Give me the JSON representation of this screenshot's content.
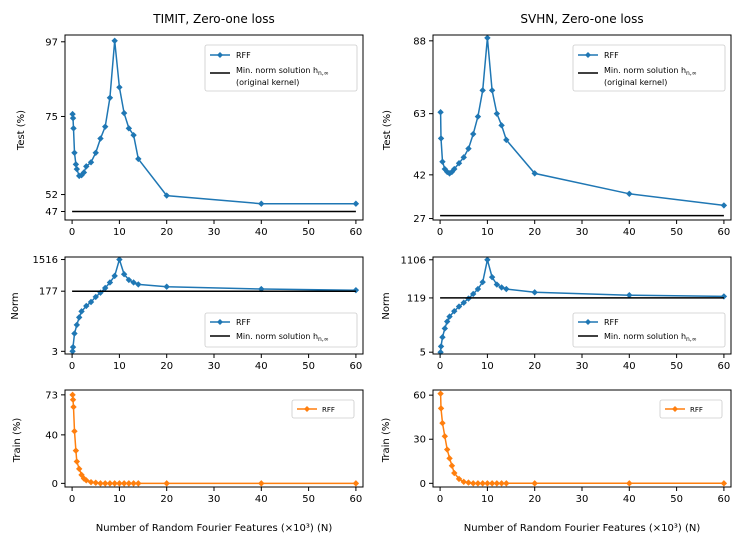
{
  "figure": {
    "xlabel": "Number of Random Fourier Features (×10³) (N)",
    "colors": {
      "blue": "#1f77b4",
      "orange": "#ff7f0e",
      "black": "#000000"
    }
  },
  "legend": {
    "rff": "RFF",
    "min_norm_test_line1": "Min. norm solution h",
    "min_norm_test_sub": "n,∞",
    "min_norm_test_line2": "(original kernel)",
    "min_norm_norm": "Min. norm solution h",
    "min_norm_norm_sub": "n,∞"
  },
  "chart_data": [
    {
      "id": "timit-test",
      "title": "TIMIT, Zero-one loss",
      "type": "line",
      "ylabel": "Test (%)",
      "xlim": [
        -1.5,
        61.5
      ],
      "ylim": [
        44.5,
        99
      ],
      "xticks": [
        0,
        10,
        20,
        30,
        40,
        50,
        60
      ],
      "yticks": [
        47,
        52,
        75,
        97
      ],
      "series": [
        {
          "name": "RFF",
          "color": "#1f77b4",
          "marker": "diamond",
          "x": [
            0.1,
            0.2,
            0.3,
            0.5,
            0.8,
            1,
            1.5,
            2,
            2.5,
            3,
            4,
            5,
            6,
            7,
            8,
            9,
            10,
            11,
            12,
            13,
            14,
            20,
            40,
            60
          ],
          "y": [
            75.7,
            74.5,
            71.5,
            64.3,
            60.9,
            59.5,
            57.5,
            57.7,
            58.5,
            60.3,
            61.5,
            64.3,
            68.5,
            72,
            80.5,
            97.3,
            83.6,
            76,
            71.5,
            69.5,
            62.5,
            51.7,
            49.3,
            49.3
          ]
        },
        {
          "name": "Min. norm solution (original kernel)",
          "color": "#000000",
          "marker": "none",
          "x": [
            0,
            60
          ],
          "y": [
            47,
            47
          ]
        }
      ]
    },
    {
      "id": "svhn-test",
      "title": "SVHN, Zero-one loss",
      "type": "line",
      "ylabel": "Test (%)",
      "xlim": [
        -1.5,
        61.5
      ],
      "ylim": [
        26.5,
        90
      ],
      "xticks": [
        0,
        10,
        20,
        30,
        40,
        50,
        60
      ],
      "yticks": [
        27,
        42,
        63,
        88
      ],
      "series": [
        {
          "name": "RFF",
          "color": "#1f77b4",
          "marker": "diamond",
          "x": [
            0.1,
            0.2,
            0.5,
            1,
            1.5,
            2,
            2.5,
            3,
            4,
            5,
            6,
            7,
            8,
            9,
            10,
            11,
            12,
            13,
            14,
            20,
            40,
            60
          ],
          "y": [
            63.5,
            54.5,
            46.5,
            44,
            43,
            42.5,
            43,
            44,
            46,
            48,
            51,
            56,
            62,
            71,
            89,
            71,
            63,
            59,
            54,
            42.5,
            35.5,
            31.5
          ]
        },
        {
          "name": "Min. norm solution (original kernel)",
          "color": "#000000",
          "marker": "none",
          "x": [
            0,
            60
          ],
          "y": [
            28,
            28
          ]
        }
      ]
    },
    {
      "id": "timit-norm",
      "type": "line",
      "ylabel": "Norm",
      "xlim": [
        -1.5,
        61.5
      ],
      "ylim": [
        2.5,
        1800
      ],
      "yscale": "log",
      "xticks": [
        0,
        10,
        20,
        30,
        40,
        50,
        60
      ],
      "yticks": [
        3,
        177,
        1516
      ],
      "series": [
        {
          "name": "RFF",
          "color": "#1f77b4",
          "marker": "diamond",
          "x": [
            0.1,
            0.2,
            0.5,
            1,
            1.5,
            2,
            3,
            4,
            5,
            6,
            7,
            8,
            9,
            10,
            11,
            12,
            13,
            14,
            20,
            40,
            60
          ],
          "y": [
            3,
            4,
            10,
            18,
            30,
            45,
            65,
            85,
            120,
            160,
            220,
            320,
            500,
            1516,
            560,
            380,
            320,
            280,
            240,
            205,
            190
          ]
        },
        {
          "name": "Min. norm solution",
          "color": "#000000",
          "marker": "none",
          "x": [
            0,
            60
          ],
          "y": [
            177,
            177
          ]
        }
      ]
    },
    {
      "id": "svhn-norm",
      "type": "line",
      "ylabel": "Norm",
      "xlim": [
        -1.5,
        61.5
      ],
      "ylim": [
        4.5,
        1300
      ],
      "yscale": "log",
      "xticks": [
        0,
        10,
        20,
        30,
        40,
        50,
        60
      ],
      "yticks": [
        5,
        119,
        1106
      ],
      "series": [
        {
          "name": "RFF",
          "color": "#1f77b4",
          "marker": "diamond",
          "x": [
            0.1,
            0.2,
            0.5,
            1,
            1.5,
            2,
            3,
            4,
            5,
            6,
            7,
            8,
            9,
            10,
            11,
            12,
            13,
            14,
            20,
            40,
            60
          ],
          "y": [
            5,
            7,
            12,
            20,
            30,
            40,
            55,
            72,
            90,
            115,
            150,
            200,
            300,
            1106,
            400,
            260,
            220,
            200,
            165,
            140,
            130
          ]
        },
        {
          "name": "Min. norm solution",
          "color": "#000000",
          "marker": "none",
          "x": [
            0,
            60
          ],
          "y": [
            119,
            119
          ]
        }
      ]
    },
    {
      "id": "timit-train",
      "type": "line",
      "ylabel": "Train (%)",
      "xlim": [
        -1.5,
        61.5
      ],
      "ylim": [
        -3,
        77
      ],
      "xticks": [
        0,
        10,
        20,
        30,
        40,
        50,
        60
      ],
      "yticks": [
        0,
        40,
        73
      ],
      "series": [
        {
          "name": "RFF",
          "color": "#ff7f0e",
          "marker": "diamond",
          "x": [
            0.1,
            0.2,
            0.3,
            0.5,
            0.8,
            1,
            1.5,
            2,
            2.5,
            3,
            4,
            5,
            6,
            7,
            8,
            9,
            10,
            11,
            12,
            13,
            14,
            20,
            40,
            60
          ],
          "y": [
            73,
            69,
            63,
            43,
            27,
            18,
            12,
            7,
            4,
            2.5,
            1,
            0.5,
            0,
            0,
            0,
            0,
            0,
            0,
            0,
            0,
            0,
            0,
            0,
            0
          ]
        }
      ]
    },
    {
      "id": "svhn-train",
      "type": "line",
      "ylabel": "Train (%)",
      "xlim": [
        -1.5,
        61.5
      ],
      "ylim": [
        -2.5,
        63.5
      ],
      "xticks": [
        0,
        10,
        20,
        30,
        40,
        50,
        60
      ],
      "yticks": [
        0,
        30,
        60
      ],
      "series": [
        {
          "name": "RFF",
          "color": "#ff7f0e",
          "marker": "diamond",
          "x": [
            0.1,
            0.2,
            0.5,
            1,
            1.5,
            2,
            2.5,
            3,
            4,
            5,
            6,
            7,
            8,
            9,
            10,
            11,
            12,
            13,
            14,
            20,
            40,
            60
          ],
          "y": [
            61,
            51,
            41,
            32,
            23,
            17,
            12,
            7,
            3,
            1,
            0.5,
            0,
            0,
            0,
            0,
            0,
            0,
            0,
            0,
            0,
            0,
            0
          ]
        }
      ]
    }
  ]
}
